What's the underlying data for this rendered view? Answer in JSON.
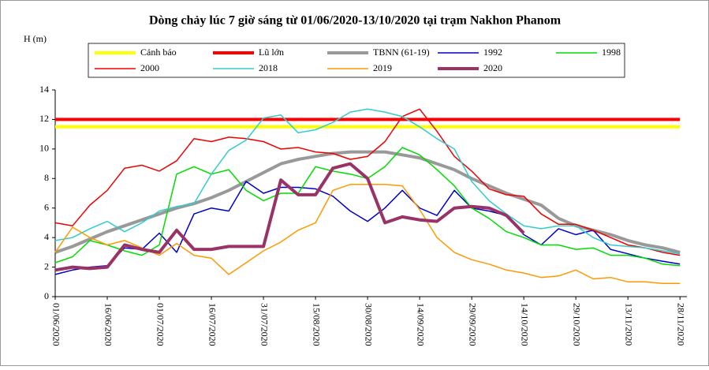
{
  "chart_data": {
    "type": "line",
    "title": "Dòng chảy lúc 7 giờ sáng từ 01/06/2020-13/10/2020 tại trạm Nakhon Phanom",
    "y_label": "H (m)",
    "x": [
      "01/06/2020",
      "06/06/2020",
      "11/06/2020",
      "16/06/2020",
      "21/06/2020",
      "26/06/2020",
      "01/07/2020",
      "06/07/2020",
      "11/07/2020",
      "16/07/2020",
      "21/07/2020",
      "26/07/2020",
      "31/07/2020",
      "05/08/2020",
      "10/08/2020",
      "15/08/2020",
      "20/08/2020",
      "25/08/2020",
      "30/08/2020",
      "04/09/2020",
      "09/09/2020",
      "14/09/2020",
      "19/09/2020",
      "24/09/2020",
      "29/09/2020",
      "04/10/2020",
      "09/10/2020",
      "14/10/2020",
      "19/10/2020",
      "24/10/2020",
      "29/10/2020",
      "03/11/2020",
      "08/11/2020",
      "13/11/2020",
      "18/11/2020",
      "23/11/2020",
      "28/11/2020"
    ],
    "xlim": [
      "01/06/2020",
      "30/11/2020"
    ],
    "xticks": [
      "01/06/2020",
      "16/06/2020",
      "01/07/2020",
      "16/07/2020",
      "31/07/2020",
      "15/08/2020",
      "30/08/2020",
      "14/09/2020",
      "29/09/2020",
      "14/10/2020",
      "29/10/2020",
      "13/11/2020",
      "28/11/2020"
    ],
    "ylim": [
      0,
      14
    ],
    "yticks": [
      0,
      2,
      4,
      6,
      8,
      10,
      12,
      14
    ],
    "grid": false,
    "series": [
      {
        "name": "Cảnh báo",
        "color": "#ffff00",
        "line_width": 4,
        "values": [
          11.5,
          11.5,
          11.5,
          11.5,
          11.5,
          11.5,
          11.5,
          11.5,
          11.5,
          11.5,
          11.5,
          11.5,
          11.5,
          11.5,
          11.5,
          11.5,
          11.5,
          11.5,
          11.5,
          11.5,
          11.5,
          11.5,
          11.5,
          11.5,
          11.5,
          11.5,
          11.5,
          11.5,
          11.5,
          11.5,
          11.5,
          11.5,
          11.5,
          11.5,
          11.5,
          11.5,
          11.5
        ]
      },
      {
        "name": "Lũ lớn",
        "color": "#ff0000",
        "line_width": 4,
        "values": [
          12,
          12,
          12,
          12,
          12,
          12,
          12,
          12,
          12,
          12,
          12,
          12,
          12,
          12,
          12,
          12,
          12,
          12,
          12,
          12,
          12,
          12,
          12,
          12,
          12,
          12,
          12,
          12,
          12,
          12,
          12,
          12,
          12,
          12,
          12,
          12,
          12
        ]
      },
      {
        "name": "TBNN (61-19)",
        "color": "#999999",
        "line_width": 4,
        "values": [
          3.0,
          3.4,
          3.9,
          4.4,
          4.8,
          5.2,
          5.6,
          6.0,
          6.3,
          6.7,
          7.2,
          7.8,
          8.4,
          9.0,
          9.3,
          9.5,
          9.7,
          9.8,
          9.8,
          9.8,
          9.6,
          9.4,
          9.0,
          8.6,
          8.0,
          7.5,
          7.0,
          6.6,
          6.2,
          5.3,
          4.8,
          4.5,
          4.2,
          3.8,
          3.5,
          3.3,
          3.0
        ]
      },
      {
        "name": "1992",
        "color": "#0000cc",
        "line_width": 1.5,
        "values": [
          1.5,
          1.8,
          2.0,
          2.1,
          3.3,
          3.2,
          4.3,
          3.0,
          5.6,
          6.0,
          5.8,
          7.8,
          7.0,
          7.4,
          7.4,
          7.3,
          6.8,
          5.8,
          5.1,
          6.0,
          7.2,
          6.0,
          5.5,
          7.2,
          6.0,
          5.8,
          5.5,
          4.2,
          3.5,
          4.6,
          4.2,
          4.5,
          3.2,
          2.9,
          2.6,
          2.4,
          2.2
        ]
      },
      {
        "name": "1998",
        "color": "#00dd00",
        "line_width": 1.5,
        "values": [
          2.3,
          2.7,
          3.8,
          3.5,
          3.1,
          2.8,
          3.5,
          8.3,
          8.8,
          8.3,
          8.6,
          7.2,
          6.5,
          7.0,
          7.0,
          8.8,
          8.5,
          8.3,
          8.0,
          8.8,
          10.1,
          9.6,
          8.6,
          7.5,
          6.0,
          5.3,
          4.4,
          4.0,
          3.5,
          3.5,
          3.2,
          3.3,
          2.8,
          2.8,
          2.6,
          2.2,
          2.1
        ]
      },
      {
        "name": "2000",
        "color": "#ee0000",
        "line_width": 1.5,
        "values": [
          5.0,
          4.8,
          6.2,
          7.2,
          8.7,
          8.9,
          8.5,
          9.2,
          10.7,
          10.5,
          10.8,
          10.7,
          10.5,
          10.0,
          10.1,
          9.8,
          9.7,
          9.3,
          9.5,
          10.5,
          12.2,
          12.7,
          11.2,
          9.5,
          8.5,
          7.3,
          6.9,
          6.8,
          5.6,
          4.9,
          4.9,
          4.5,
          4.0,
          3.5,
          3.3,
          3.0,
          2.8
        ]
      },
      {
        "name": "2018",
        "color": "#33cccc",
        "line_width": 1.5,
        "values": [
          3.8,
          4.0,
          4.6,
          5.1,
          4.4,
          5.0,
          5.8,
          6.1,
          6.3,
          8.3,
          9.9,
          10.6,
          12.1,
          12.3,
          11.1,
          11.3,
          11.8,
          12.5,
          12.7,
          12.5,
          12.2,
          11.5,
          10.7,
          10.0,
          7.8,
          6.5,
          5.6,
          4.8,
          4.6,
          4.8,
          4.8,
          4.0,
          3.5,
          3.4,
          3.3,
          3.1,
          2.9
        ]
      },
      {
        "name": "2019",
        "color": "#ff9900",
        "line_width": 1.5,
        "values": [
          3.0,
          4.7,
          4.0,
          3.5,
          3.8,
          3.3,
          2.8,
          3.6,
          2.8,
          2.6,
          1.5,
          2.3,
          3.1,
          3.7,
          4.5,
          5.0,
          7.2,
          7.6,
          7.6,
          7.6,
          7.5,
          5.9,
          4.0,
          3.0,
          2.5,
          2.2,
          1.8,
          1.6,
          1.3,
          1.4,
          1.8,
          1.2,
          1.3,
          1.0,
          1.0,
          0.9,
          0.9
        ]
      },
      {
        "name": "2020",
        "color": "#993366",
        "line_width": 4,
        "values": [
          1.8,
          2.0,
          1.9,
          2.0,
          3.5,
          3.2,
          3.0,
          4.5,
          3.2,
          3.2,
          3.4,
          3.4,
          3.4,
          7.9,
          6.9,
          6.9,
          8.7,
          9.0,
          8.0,
          5.0,
          5.4,
          5.2,
          5.1,
          6.0,
          6.1,
          6.0,
          5.5,
          4.3,
          null,
          null,
          null,
          null,
          null,
          null,
          null,
          null,
          null
        ]
      }
    ]
  }
}
